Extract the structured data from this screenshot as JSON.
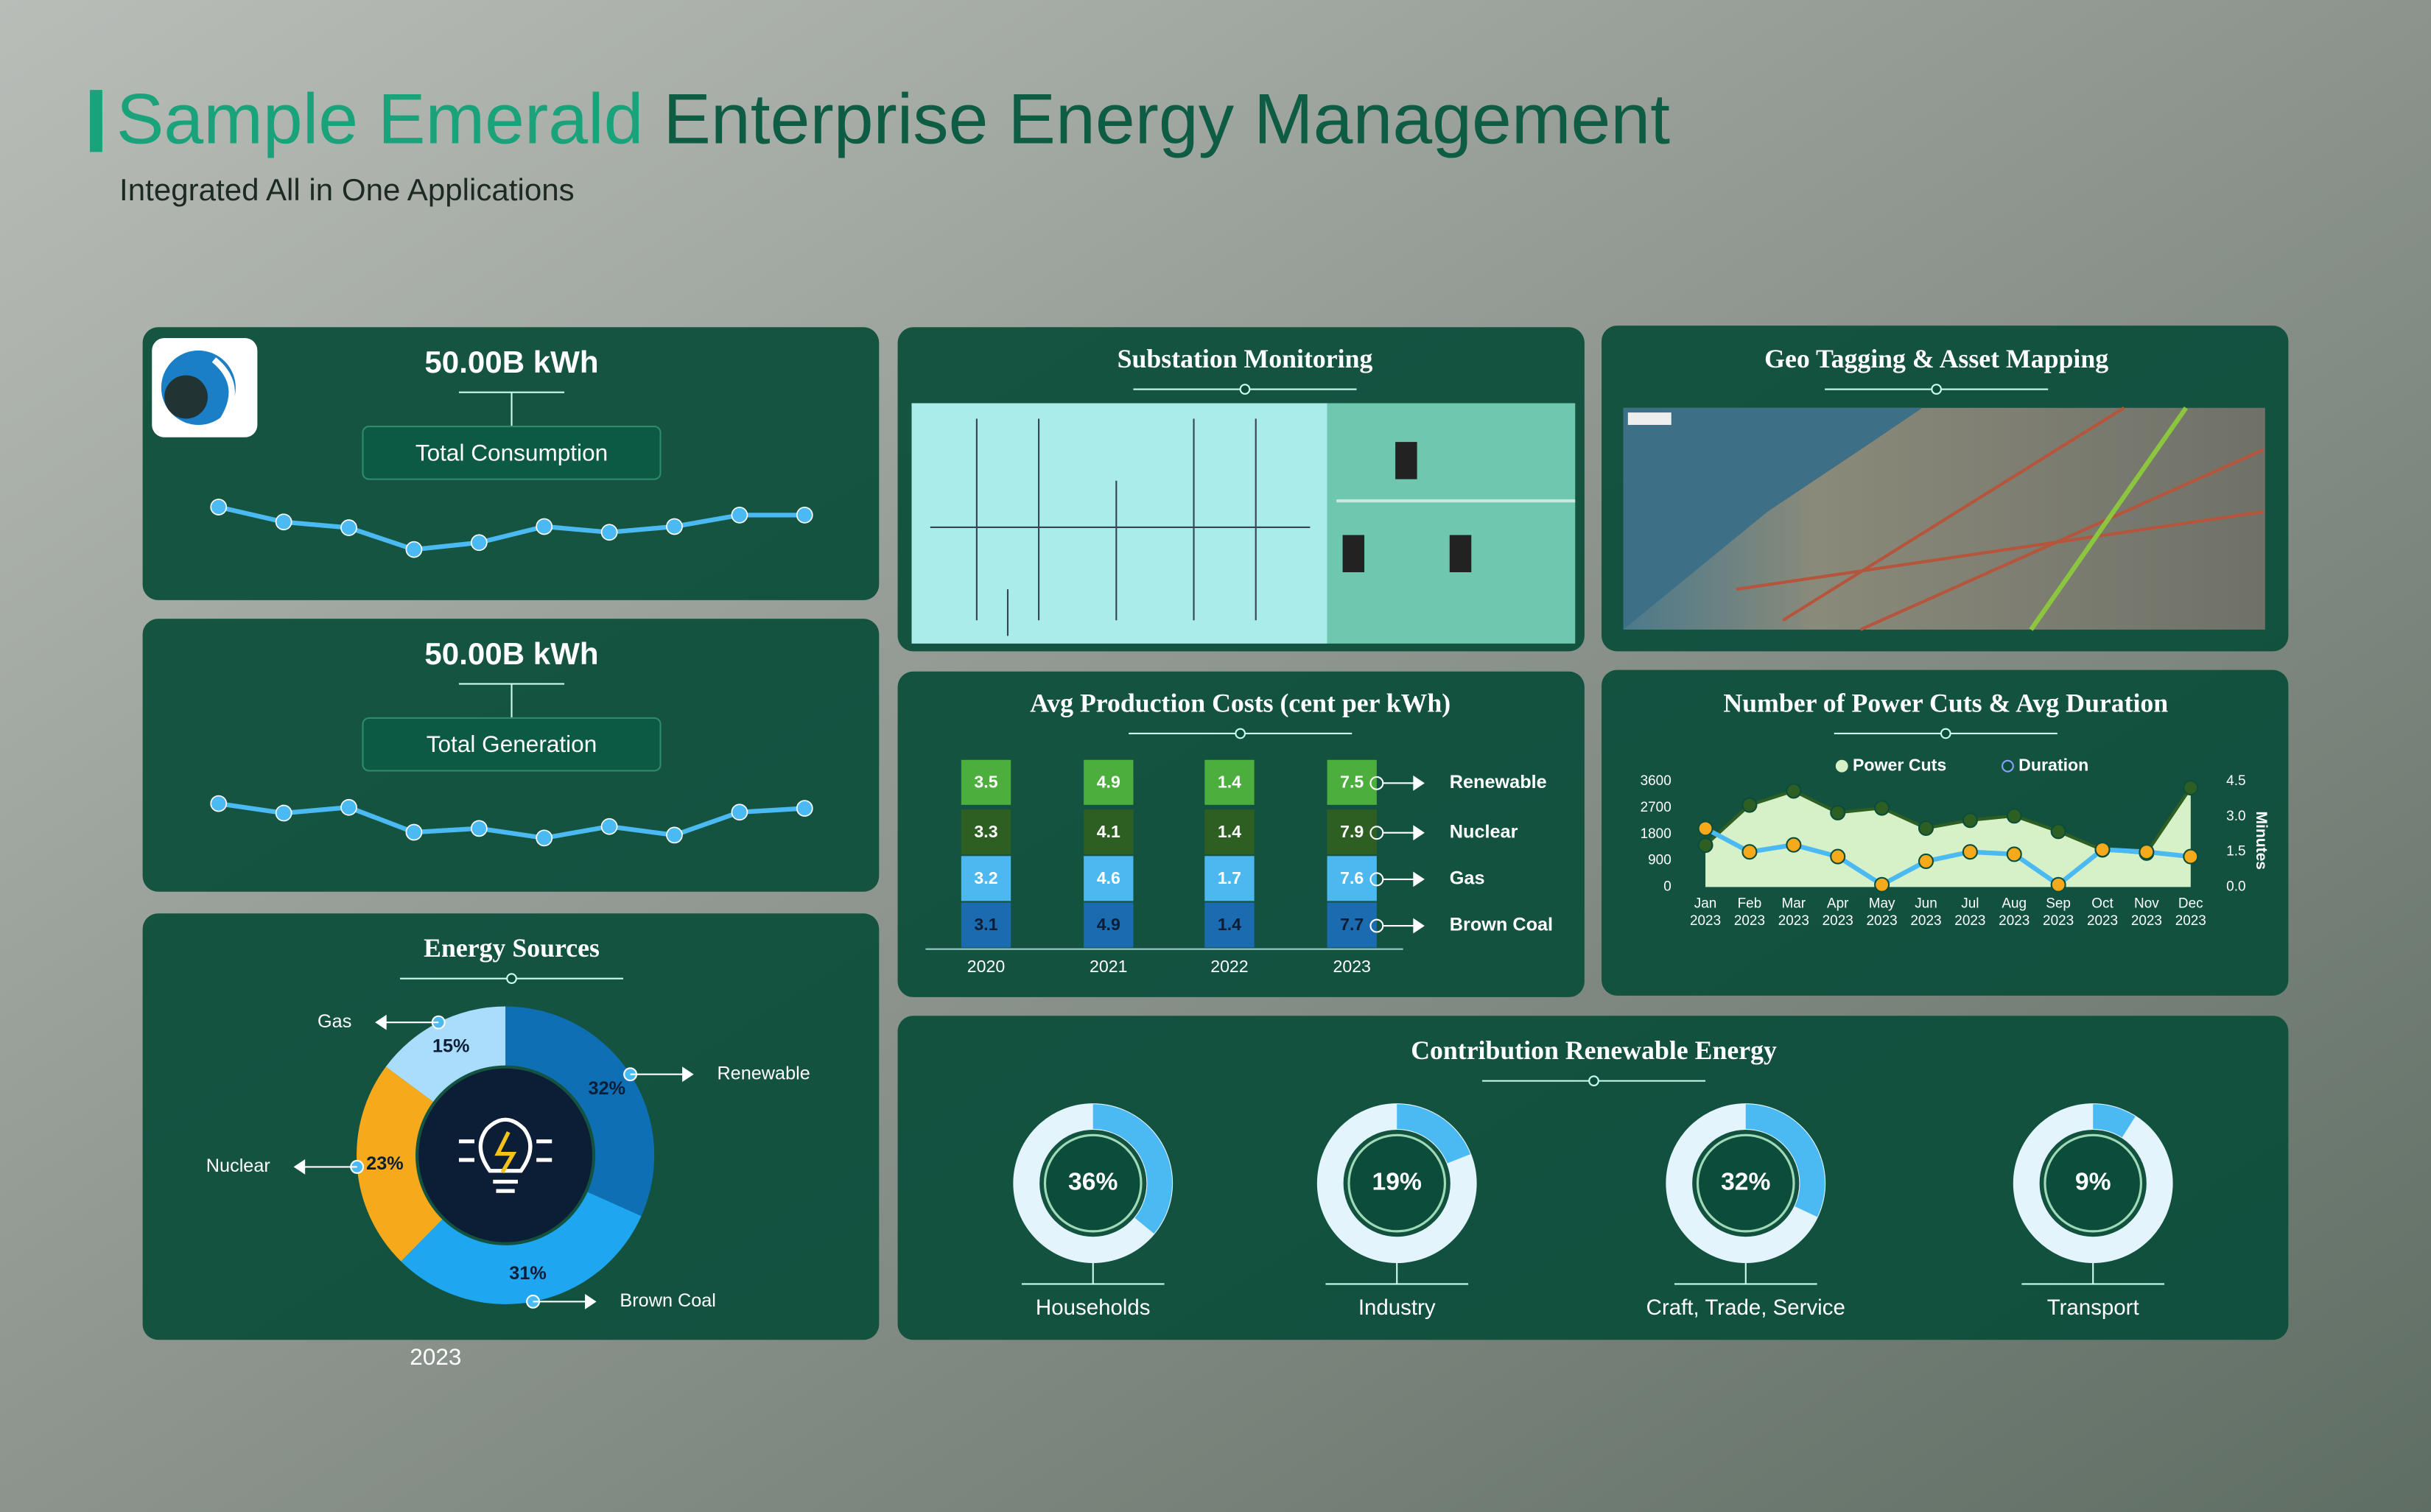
{
  "header": {
    "title_accent": "Sample Emerald",
    "title": "Enterprise Energy Management",
    "subtitle": "Integrated All in One Applications"
  },
  "consumption": {
    "type": "line",
    "value": "50.00B kWh",
    "label": "Total Consumption",
    "values": [
      76,
      63,
      58,
      39,
      45,
      59,
      54,
      59,
      69,
      69
    ],
    "ylim": [
      30,
      80
    ],
    "color": "#4cbaf2"
  },
  "generation": {
    "type": "line",
    "value": "50.00B kWh",
    "label": "Total Generation",
    "values": [
      90,
      80,
      86,
      60,
      64,
      54,
      66,
      57,
      81,
      85
    ],
    "ylim": [
      40,
      100
    ],
    "color": "#4cbaf2"
  },
  "energy_sources": {
    "type": "pie",
    "title": "Energy Sources",
    "year": "2023",
    "categories": [
      "Renewable",
      "Brown Coal",
      "Nuclear",
      "Gas"
    ],
    "values": [
      32,
      31,
      23,
      15
    ],
    "value_labels": [
      "32%",
      "31%",
      "23%",
      "15%"
    ],
    "colors": [
      "#0e6fb5",
      "#1ea7f0",
      "#f5a91b",
      "#a9ddfb"
    ]
  },
  "substation": {
    "title": "Substation Monitoring"
  },
  "geo": {
    "title": "Geo Tagging & Asset Mapping"
  },
  "production_costs": {
    "type": "bar",
    "stacked": true,
    "title": "Avg Production Costs (cent per kWh)",
    "categories": [
      "2020",
      "2021",
      "2022",
      "2023"
    ],
    "series": [
      {
        "name": "Brown Coal",
        "color": "#1a6bb0",
        "values": [
          3.1,
          4.9,
          1.4,
          7.7
        ]
      },
      {
        "name": "Gas",
        "color": "#4db8f0",
        "values": [
          3.2,
          4.6,
          1.7,
          7.6
        ]
      },
      {
        "name": "Nuclear",
        "color": "#2d5e22",
        "values": [
          3.3,
          4.1,
          1.4,
          7.9
        ]
      },
      {
        "name": "Renewable",
        "color": "#4cae3c",
        "values": [
          3.5,
          4.9,
          1.4,
          7.5
        ]
      }
    ]
  },
  "power_cuts": {
    "type": "line",
    "title": "Number of Power Cuts & Avg Duration",
    "categories": [
      "Jan",
      "Feb",
      "Mar",
      "Apr",
      "May",
      "Jun",
      "Jul",
      "Aug",
      "Sep",
      "Oct",
      "Nov",
      "Dec"
    ],
    "year": "2023",
    "series": [
      {
        "name": "Power Cuts",
        "color": "#2d5e22",
        "values": [
          1430,
          2800,
          3280,
          2540,
          2700,
          2010,
          2280,
          2430,
          1900,
          1270,
          1160,
          3390
        ]
      },
      {
        "name": "Duration",
        "color": "#4cbaf2",
        "axis": "y2",
        "values": [
          2.5,
          1.5,
          1.8,
          1.3,
          0.1,
          1.1,
          1.5,
          1.4,
          0.1,
          1.6,
          1.5,
          1.3
        ]
      }
    ],
    "ylim": [
      0,
      3600
    ],
    "yticks": [
      0,
      900,
      1800,
      2700,
      3600
    ],
    "y2lim": [
      0,
      4.5
    ],
    "y2ticks": [
      {
        "value": 0,
        "label": "0.0"
      },
      1.5,
      {
        "value": 3,
        "label": "3.0"
      },
      4.5
    ],
    "y2label": "Minutes"
  },
  "renewable_contribution": {
    "type": "pie",
    "title": "Contribution Renewable Energy",
    "categories": [
      "Households",
      "Industry",
      "Craft, Trade, Service",
      "Transport"
    ],
    "values": [
      36,
      19,
      32,
      9
    ],
    "value_labels": [
      "36%",
      "19%",
      "32%",
      "9%"
    ]
  }
}
